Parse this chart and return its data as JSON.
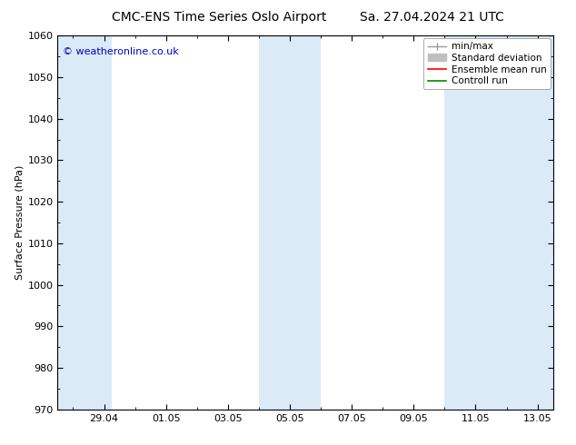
{
  "title": "CMC-ENS Time Series Oslo Airport",
  "title2": "Sa. 27.04.2024 21 UTC",
  "ylabel": "Surface Pressure (hPa)",
  "ylim": [
    970,
    1060
  ],
  "yticks": [
    970,
    980,
    990,
    1000,
    1010,
    1020,
    1030,
    1040,
    1050,
    1060
  ],
  "xlabel_dates": [
    "29.04",
    "01.05",
    "03.05",
    "05.05",
    "07.05",
    "09.05",
    "11.05",
    "13.05"
  ],
  "copyright_text": "© weatheronline.co.uk",
  "copyright_color": "#0000cc",
  "legend_labels": [
    "min/max",
    "Standard deviation",
    "Ensemble mean run",
    "Controll run"
  ],
  "legend_colors": [
    "#999999",
    "#c0c0c0",
    "#ff0000",
    "#008800"
  ],
  "bg_color": "#ffffff",
  "band_color": "#daeaf7",
  "band_ranges": [
    [
      -0.5,
      1.25
    ],
    [
      6.0,
      8.0
    ],
    [
      12.0,
      15.5
    ]
  ],
  "xlim": [
    -0.5,
    15.5
  ],
  "xtick_positions": [
    1,
    3,
    5,
    7,
    9,
    11,
    13,
    15
  ],
  "font_size_title": 10,
  "font_size_axis": 8,
  "font_size_legend": 7.5,
  "font_size_copyright": 8
}
